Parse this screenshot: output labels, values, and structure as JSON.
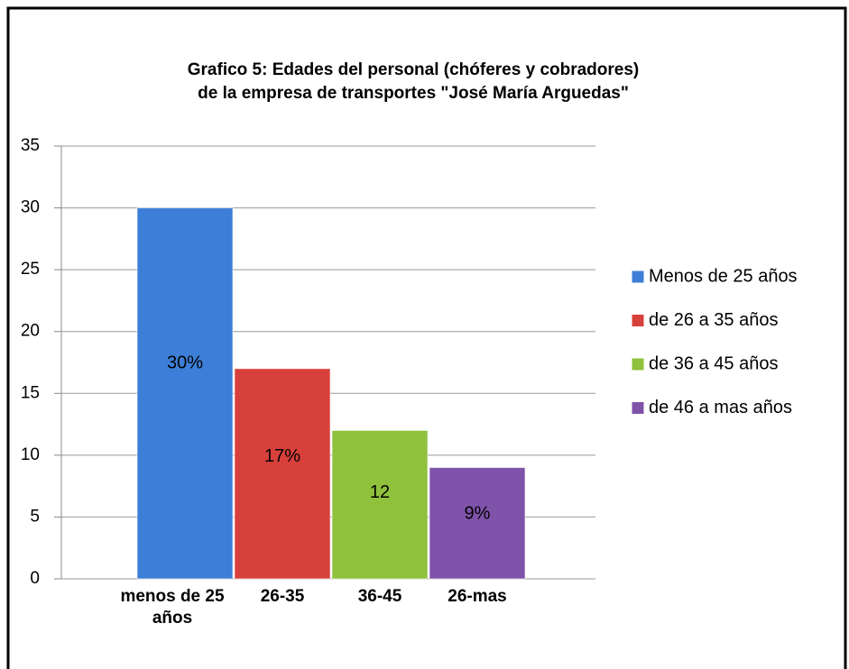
{
  "chart_data": {
    "type": "bar",
    "title": "Grafico 5: Edades  del personal (chóferes y cobradores)",
    "subtitle": "de la empresa de transportes \"José María Arguedas\"",
    "categories": [
      "menos de 25 años",
      "26-35",
      "36-45",
      "26-mas"
    ],
    "series": [
      {
        "name": "Menos de 25 años",
        "color": "#3d7fd8",
        "values": [
          30,
          null,
          null,
          null
        ],
        "value_labels": [
          "30%",
          null,
          null,
          null
        ]
      },
      {
        "name": "de 26 a 35 años",
        "color": "#d8403b",
        "values": [
          null,
          17,
          null,
          null
        ],
        "value_labels": [
          null,
          "17%",
          null,
          null
        ]
      },
      {
        "name": "de 36 a 45 años",
        "color": "#8fc13c",
        "values": [
          null,
          null,
          12,
          null
        ]
      },
      {
        "name": "de 46 a mas años",
        "color": "#7f53a9",
        "values": [
          null,
          null,
          null,
          9
        ],
        "value_labels": [
          null,
          null,
          null,
          "9%"
        ]
      }
    ],
    "ylim": [
      0,
      35
    ],
    "yticks": [
      0,
      5,
      10,
      15,
      20,
      25,
      30,
      35
    ],
    "grid": true,
    "legend": "right"
  }
}
